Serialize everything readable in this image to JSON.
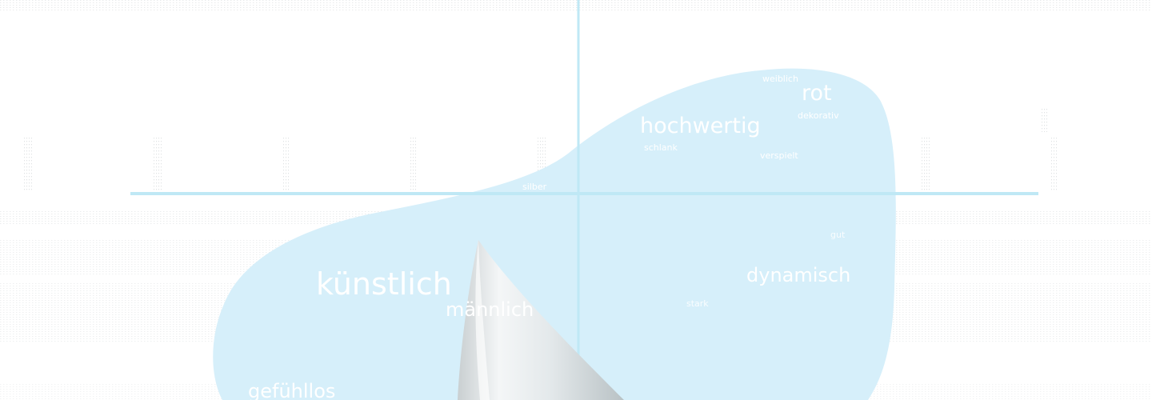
{
  "colors": {
    "blob": "#d6effa",
    "axis": "#bfe8f5",
    "word": "#ffffff",
    "shape": "#e9eef0"
  },
  "words": {
    "weiblich": "weiblich",
    "rot": "rot",
    "dekorativ": "dekorativ",
    "hochwertig": "hochwertig",
    "schlank": "schlank",
    "verspielt": "verspielt",
    "silber": "silber",
    "kuenstlich": "künstlich",
    "maennlich": "männlich",
    "dynamisch": "dynamisch",
    "gefuehllos": "gefühllos",
    "small_right": "gut",
    "small_center": "stark"
  }
}
